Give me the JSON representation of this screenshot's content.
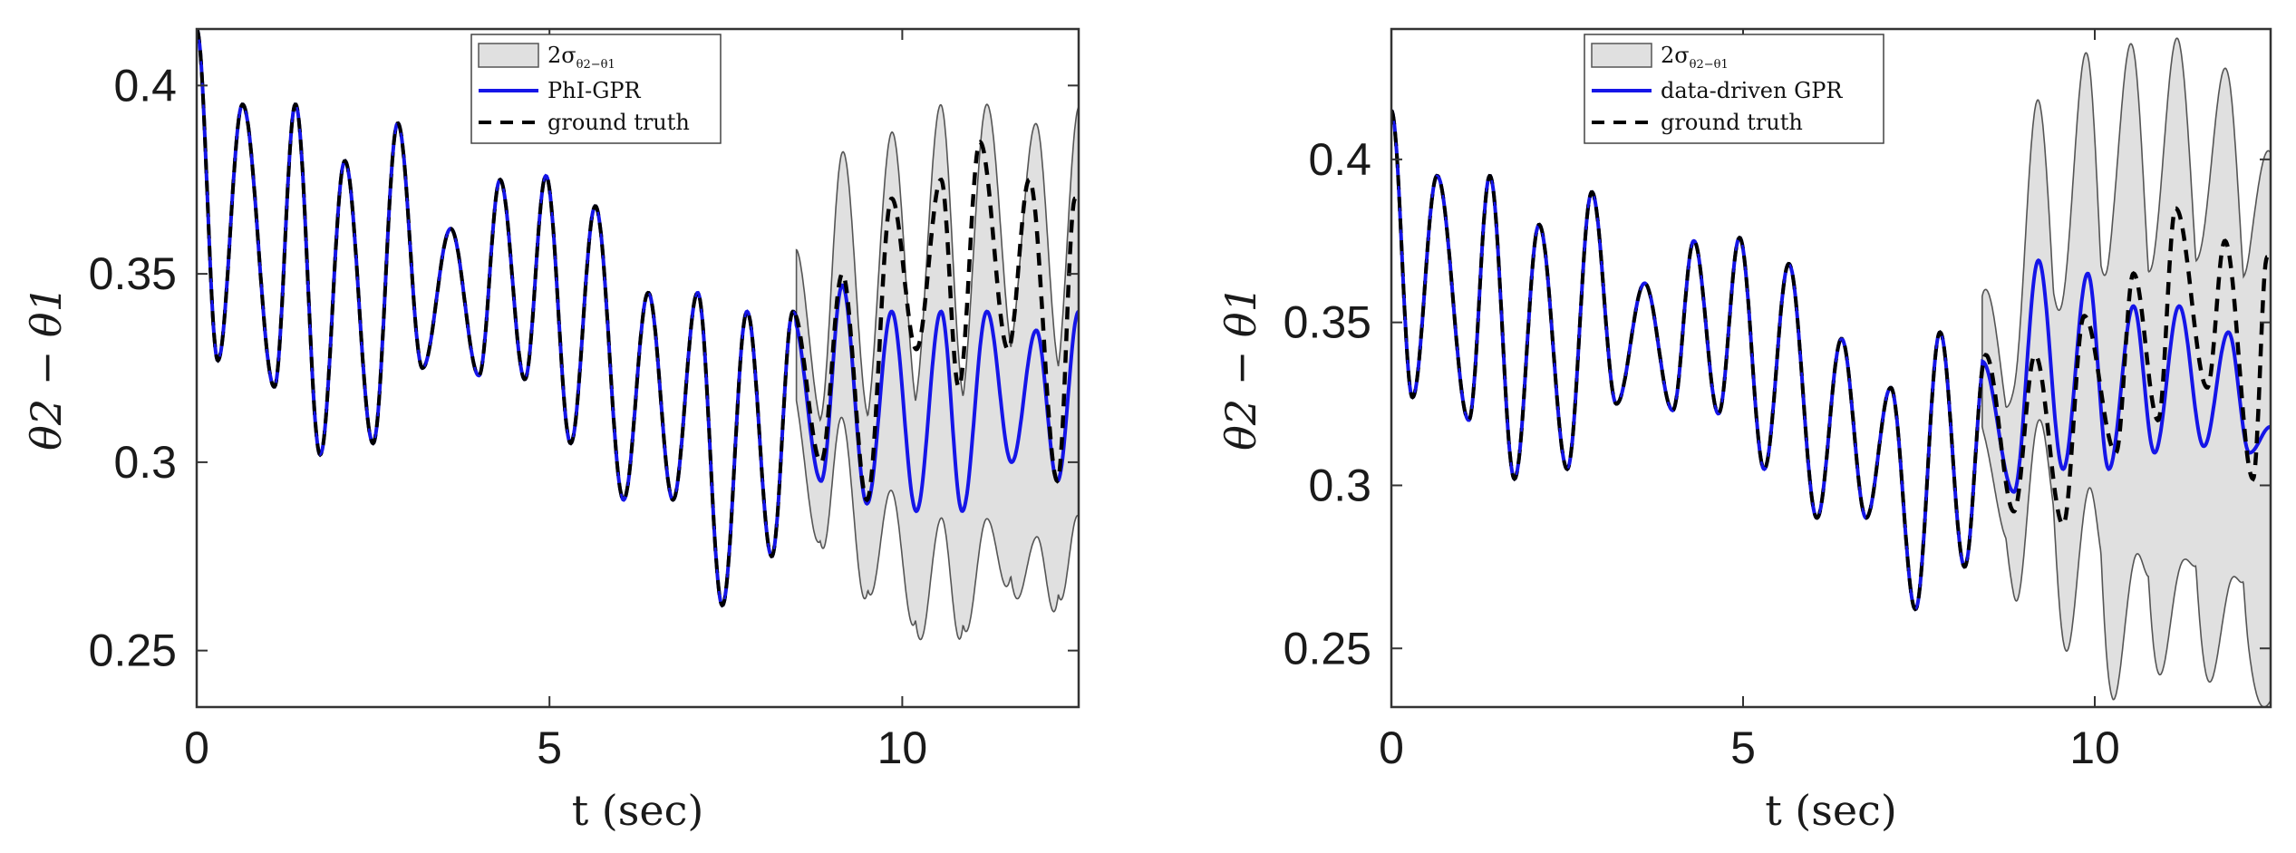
{
  "chart_data": [
    {
      "type": "line",
      "xlabel": "t (sec)",
      "ylabel": "θ2 − θ1",
      "xlim": [
        0,
        12.5
      ],
      "ylim": [
        0.235,
        0.415
      ],
      "xticks": [
        "0",
        "5",
        "10"
      ],
      "yticks": [
        "0.25",
        "0.3",
        "0.35",
        "0.4"
      ],
      "grid": false,
      "legend_position": "top-center",
      "legend": {
        "band": "2σθ2−θ1",
        "band_symbol": "2σ",
        "band_subscript": "θ2−θ1",
        "model": "PhI-GPR",
        "truth": "ground truth"
      },
      "colors": {
        "model": "#1515e8",
        "truth": "#000000",
        "band_fill": "#e0e0e0",
        "band_edge": "#555555"
      },
      "forecast_start": 8.5,
      "ground_truth": {
        "peaks": [
          [
            0,
            0.415
          ],
          [
            0.65,
            0.395
          ],
          [
            1.4,
            0.395
          ],
          [
            2.1,
            0.38
          ],
          [
            2.85,
            0.39
          ],
          [
            3.6,
            0.362
          ],
          [
            4.3,
            0.375
          ],
          [
            4.95,
            0.376
          ],
          [
            5.65,
            0.368
          ],
          [
            6.4,
            0.345
          ],
          [
            7.1,
            0.345
          ],
          [
            7.8,
            0.34
          ],
          [
            8.45,
            0.34
          ],
          [
            9.15,
            0.35
          ],
          [
            9.85,
            0.37
          ],
          [
            10.55,
            0.375
          ],
          [
            11.1,
            0.385
          ],
          [
            11.8,
            0.375
          ],
          [
            12.45,
            0.37
          ]
        ],
        "troughs": [
          [
            0.3,
            0.327
          ],
          [
            1.1,
            0.32
          ],
          [
            1.75,
            0.302
          ],
          [
            2.5,
            0.305
          ],
          [
            3.2,
            0.325
          ],
          [
            4.0,
            0.323
          ],
          [
            4.65,
            0.322
          ],
          [
            5.3,
            0.305
          ],
          [
            6.05,
            0.29
          ],
          [
            6.75,
            0.29
          ],
          [
            7.45,
            0.262
          ],
          [
            8.15,
            0.275
          ],
          [
            8.85,
            0.3
          ],
          [
            9.5,
            0.29
          ],
          [
            10.2,
            0.33
          ],
          [
            10.8,
            0.32
          ],
          [
            11.5,
            0.33
          ],
          [
            12.2,
            0.295
          ]
        ]
      },
      "prediction": {
        "peaks": [
          [
            8.45,
            0.338
          ],
          [
            9.15,
            0.347
          ],
          [
            9.85,
            0.34
          ],
          [
            10.55,
            0.34
          ],
          [
            11.2,
            0.34
          ],
          [
            11.9,
            0.335
          ],
          [
            12.5,
            0.34
          ]
        ],
        "troughs": [
          [
            8.85,
            0.295
          ],
          [
            9.5,
            0.289
          ],
          [
            10.2,
            0.287
          ],
          [
            10.85,
            0.287
          ],
          [
            11.55,
            0.3
          ],
          [
            12.2,
            0.295
          ]
        ]
      },
      "band_halfwidth": {
        "start": 8.5,
        "end": 12.5,
        "min": 0.02,
        "max": 0.055
      }
    },
    {
      "type": "line",
      "xlabel": "t (sec)",
      "ylabel": "θ2 − θ1",
      "xlim": [
        0,
        12.5
      ],
      "ylim": [
        0.232,
        0.44
      ],
      "xticks": [
        "0",
        "5",
        "10"
      ],
      "yticks": [
        "0.25",
        "0.3",
        "0.35",
        "0.4"
      ],
      "grid": false,
      "legend_position": "top-center",
      "legend": {
        "band": "2σθ2−θ1",
        "band_symbol": "2σ",
        "band_subscript": "θ2−θ1",
        "model": "data-driven GPR",
        "truth": "ground truth"
      },
      "colors": {
        "model": "#1515e8",
        "truth": "#000000",
        "band_fill": "#e0e0e0",
        "band_edge": "#555555"
      },
      "forecast_start": 8.4,
      "ground_truth": {
        "peaks": [
          [
            0,
            0.415
          ],
          [
            0.65,
            0.395
          ],
          [
            1.4,
            0.395
          ],
          [
            2.1,
            0.38
          ],
          [
            2.85,
            0.39
          ],
          [
            3.6,
            0.362
          ],
          [
            4.3,
            0.375
          ],
          [
            4.95,
            0.376
          ],
          [
            5.65,
            0.368
          ],
          [
            6.4,
            0.345
          ],
          [
            7.1,
            0.33
          ],
          [
            7.8,
            0.347
          ],
          [
            8.45,
            0.34
          ],
          [
            9.15,
            0.34
          ],
          [
            9.85,
            0.352
          ],
          [
            10.55,
            0.365
          ],
          [
            11.15,
            0.385
          ],
          [
            11.85,
            0.375
          ],
          [
            12.45,
            0.37
          ]
        ],
        "troughs": [
          [
            0.3,
            0.327
          ],
          [
            1.1,
            0.32
          ],
          [
            1.75,
            0.302
          ],
          [
            2.5,
            0.305
          ],
          [
            3.2,
            0.325
          ],
          [
            4.0,
            0.323
          ],
          [
            4.65,
            0.322
          ],
          [
            5.3,
            0.305
          ],
          [
            6.05,
            0.29
          ],
          [
            6.75,
            0.29
          ],
          [
            7.45,
            0.262
          ],
          [
            8.15,
            0.275
          ],
          [
            8.85,
            0.292
          ],
          [
            9.55,
            0.288
          ],
          [
            10.3,
            0.31
          ],
          [
            10.9,
            0.32
          ],
          [
            11.6,
            0.33
          ],
          [
            12.25,
            0.302
          ]
        ]
      },
      "prediction": {
        "peaks": [
          [
            8.4,
            0.338
          ],
          [
            9.2,
            0.369
          ],
          [
            9.9,
            0.365
          ],
          [
            10.55,
            0.355
          ],
          [
            11.2,
            0.355
          ],
          [
            11.9,
            0.347
          ],
          [
            12.5,
            0.318
          ]
        ],
        "troughs": [
          [
            8.85,
            0.298
          ],
          [
            9.55,
            0.305
          ],
          [
            10.2,
            0.305
          ],
          [
            10.85,
            0.31
          ],
          [
            11.55,
            0.312
          ],
          [
            12.2,
            0.31
          ]
        ]
      },
      "band_halfwidth": {
        "start": 8.4,
        "end": 12.5,
        "min": 0.02,
        "max": 0.085
      }
    }
  ]
}
